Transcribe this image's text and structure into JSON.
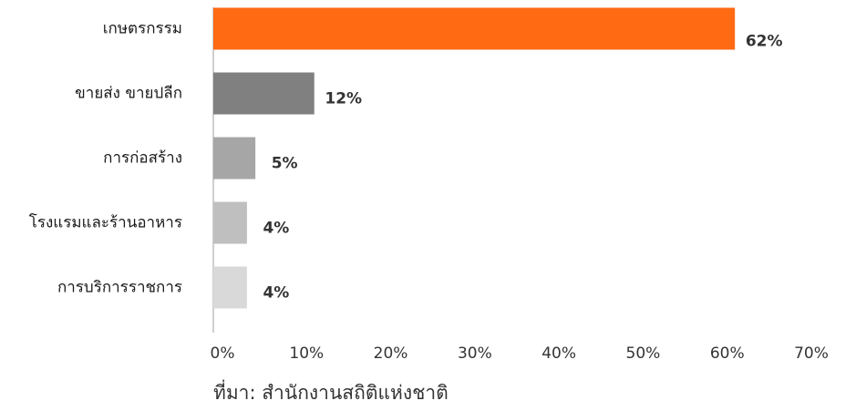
{
  "chart_data": {
    "type": "bar",
    "orientation": "horizontal",
    "categories": [
      "เกษตรกรรม",
      "ขายส่ง ขายปลีก",
      "การก่อสร้าง",
      "โรงแรมและร้านอาหาร",
      "การบริการราชการ"
    ],
    "values": [
      62,
      12,
      5,
      4,
      4
    ],
    "value_labels": [
      "62%",
      "12%",
      "5%",
      "4%",
      "4%"
    ],
    "colors": [
      "#ff6a13",
      "#808080",
      "#a6a6a6",
      "#bfbfbf",
      "#d9d9d9"
    ],
    "xlim": [
      0,
      70
    ],
    "xticks": [
      {
        "value": 0,
        "label": "0%"
      },
      {
        "value": 10,
        "label": "10%"
      },
      {
        "value": 20,
        "label": "20%"
      },
      {
        "value": 30,
        "label": "30%"
      },
      {
        "value": 40,
        "label": "40%"
      },
      {
        "value": 50,
        "label": "50%"
      },
      {
        "value": 60,
        "label": "60%"
      },
      {
        "value": 70,
        "label": "70%"
      }
    ],
    "source": "ที่มา: สำนักงานสถิติแห่งชาติ"
  }
}
